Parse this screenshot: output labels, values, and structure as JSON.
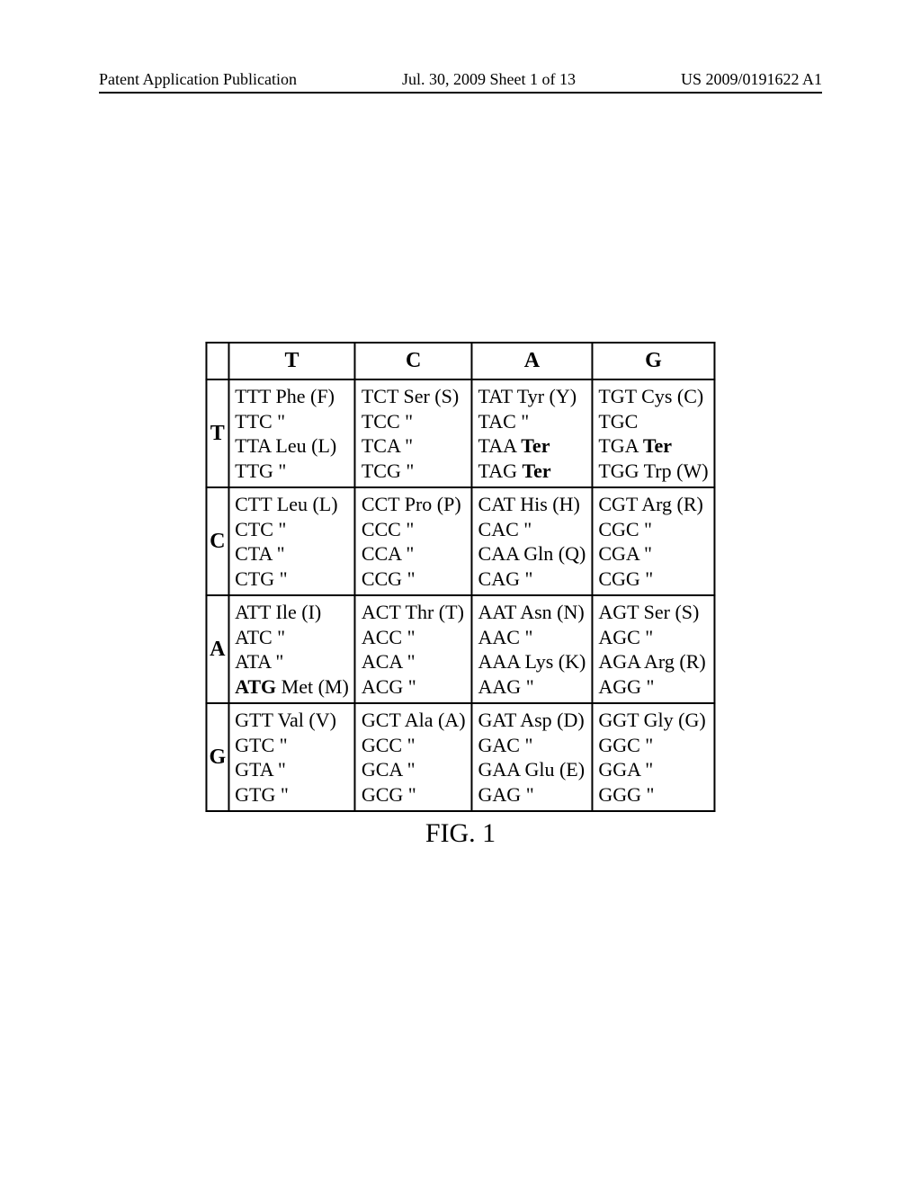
{
  "header": {
    "left": "Patent Application Publication",
    "middle": "Jul. 30, 2009  Sheet 1 of 13",
    "right": "US 2009/0191622 A1"
  },
  "figure_caption": "FIG. 1",
  "codon_table": {
    "type": "table",
    "title_fontsize": 24,
    "cell_fontsize": 22,
    "background_color": "#ffffff",
    "border_color": "#000000",
    "border_width": 2,
    "font_family": "Times New Roman",
    "col_headers": [
      "T",
      "C",
      "A",
      "G"
    ],
    "row_headers": [
      "T",
      "C",
      "A",
      "G"
    ],
    "cells": {
      "T": {
        "T": [
          {
            "text": "TTT Phe (F)"
          },
          {
            "text": "TTC \""
          },
          {
            "text": "TTA Leu (L)"
          },
          {
            "text": "TTG \""
          }
        ],
        "C": [
          {
            "text": "TCT Ser (S)"
          },
          {
            "text": "TCC \""
          },
          {
            "text": "TCA \""
          },
          {
            "text": "TCG \""
          }
        ],
        "A": [
          {
            "text": "TAT Tyr (Y)"
          },
          {
            "text": "TAC \""
          },
          {
            "text": "TAA ",
            "bold_suffix": "Ter"
          },
          {
            "text": "TAG ",
            "bold_suffix": "Ter"
          }
        ],
        "G": [
          {
            "text": "TGT Cys (C)"
          },
          {
            "text": "TGC"
          },
          {
            "text": "TGA ",
            "bold_suffix": "Ter"
          },
          {
            "text": "TGG Trp (W)"
          }
        ]
      },
      "C": {
        "T": [
          {
            "text": "CTT Leu (L)"
          },
          {
            "text": "CTC \""
          },
          {
            "text": "CTA \""
          },
          {
            "text": "CTG \""
          }
        ],
        "C": [
          {
            "text": "CCT Pro (P)"
          },
          {
            "text": "CCC \""
          },
          {
            "text": "CCA \""
          },
          {
            "text": "CCG \""
          }
        ],
        "A": [
          {
            "text": "CAT His (H)"
          },
          {
            "text": "CAC \""
          },
          {
            "text": "CAA Gln (Q)"
          },
          {
            "text": "CAG \""
          }
        ],
        "G": [
          {
            "text": "CGT Arg (R)"
          },
          {
            "text": "CGC \""
          },
          {
            "text": "CGA \""
          },
          {
            "text": "CGG \""
          }
        ]
      },
      "A": {
        "T": [
          {
            "text": "ATT Ile (I)"
          },
          {
            "text": "ATC \""
          },
          {
            "text": "ATA \""
          },
          {
            "bold_prefix": "ATG",
            "text": " Met (M)"
          }
        ],
        "C": [
          {
            "text": "ACT Thr (T)"
          },
          {
            "text": "ACC \""
          },
          {
            "text": "ACA \""
          },
          {
            "text": "ACG \""
          }
        ],
        "A": [
          {
            "text": "AAT Asn (N)"
          },
          {
            "text": "AAC \""
          },
          {
            "text": "AAA Lys (K)"
          },
          {
            "text": "AAG \""
          }
        ],
        "G": [
          {
            "text": "AGT Ser (S)"
          },
          {
            "text": "AGC \""
          },
          {
            "text": "AGA Arg (R)"
          },
          {
            "text": "AGG \""
          }
        ]
      },
      "G": {
        "T": [
          {
            "text": "GTT Val (V)"
          },
          {
            "text": "GTC \""
          },
          {
            "text": "GTA \""
          },
          {
            "text": "GTG \""
          }
        ],
        "C": [
          {
            "text": "GCT Ala (A)"
          },
          {
            "text": "GCC \""
          },
          {
            "text": "GCA \""
          },
          {
            "text": "GCG \""
          }
        ],
        "A": [
          {
            "text": "GAT Asp (D)"
          },
          {
            "text": "GAC \""
          },
          {
            "text": "GAA Glu (E)"
          },
          {
            "text": "GAG \""
          }
        ],
        "G": [
          {
            "text": "GGT Gly (G)"
          },
          {
            "text": "GGC \""
          },
          {
            "text": "GGA \""
          },
          {
            "text": "GGG \""
          }
        ]
      }
    }
  }
}
